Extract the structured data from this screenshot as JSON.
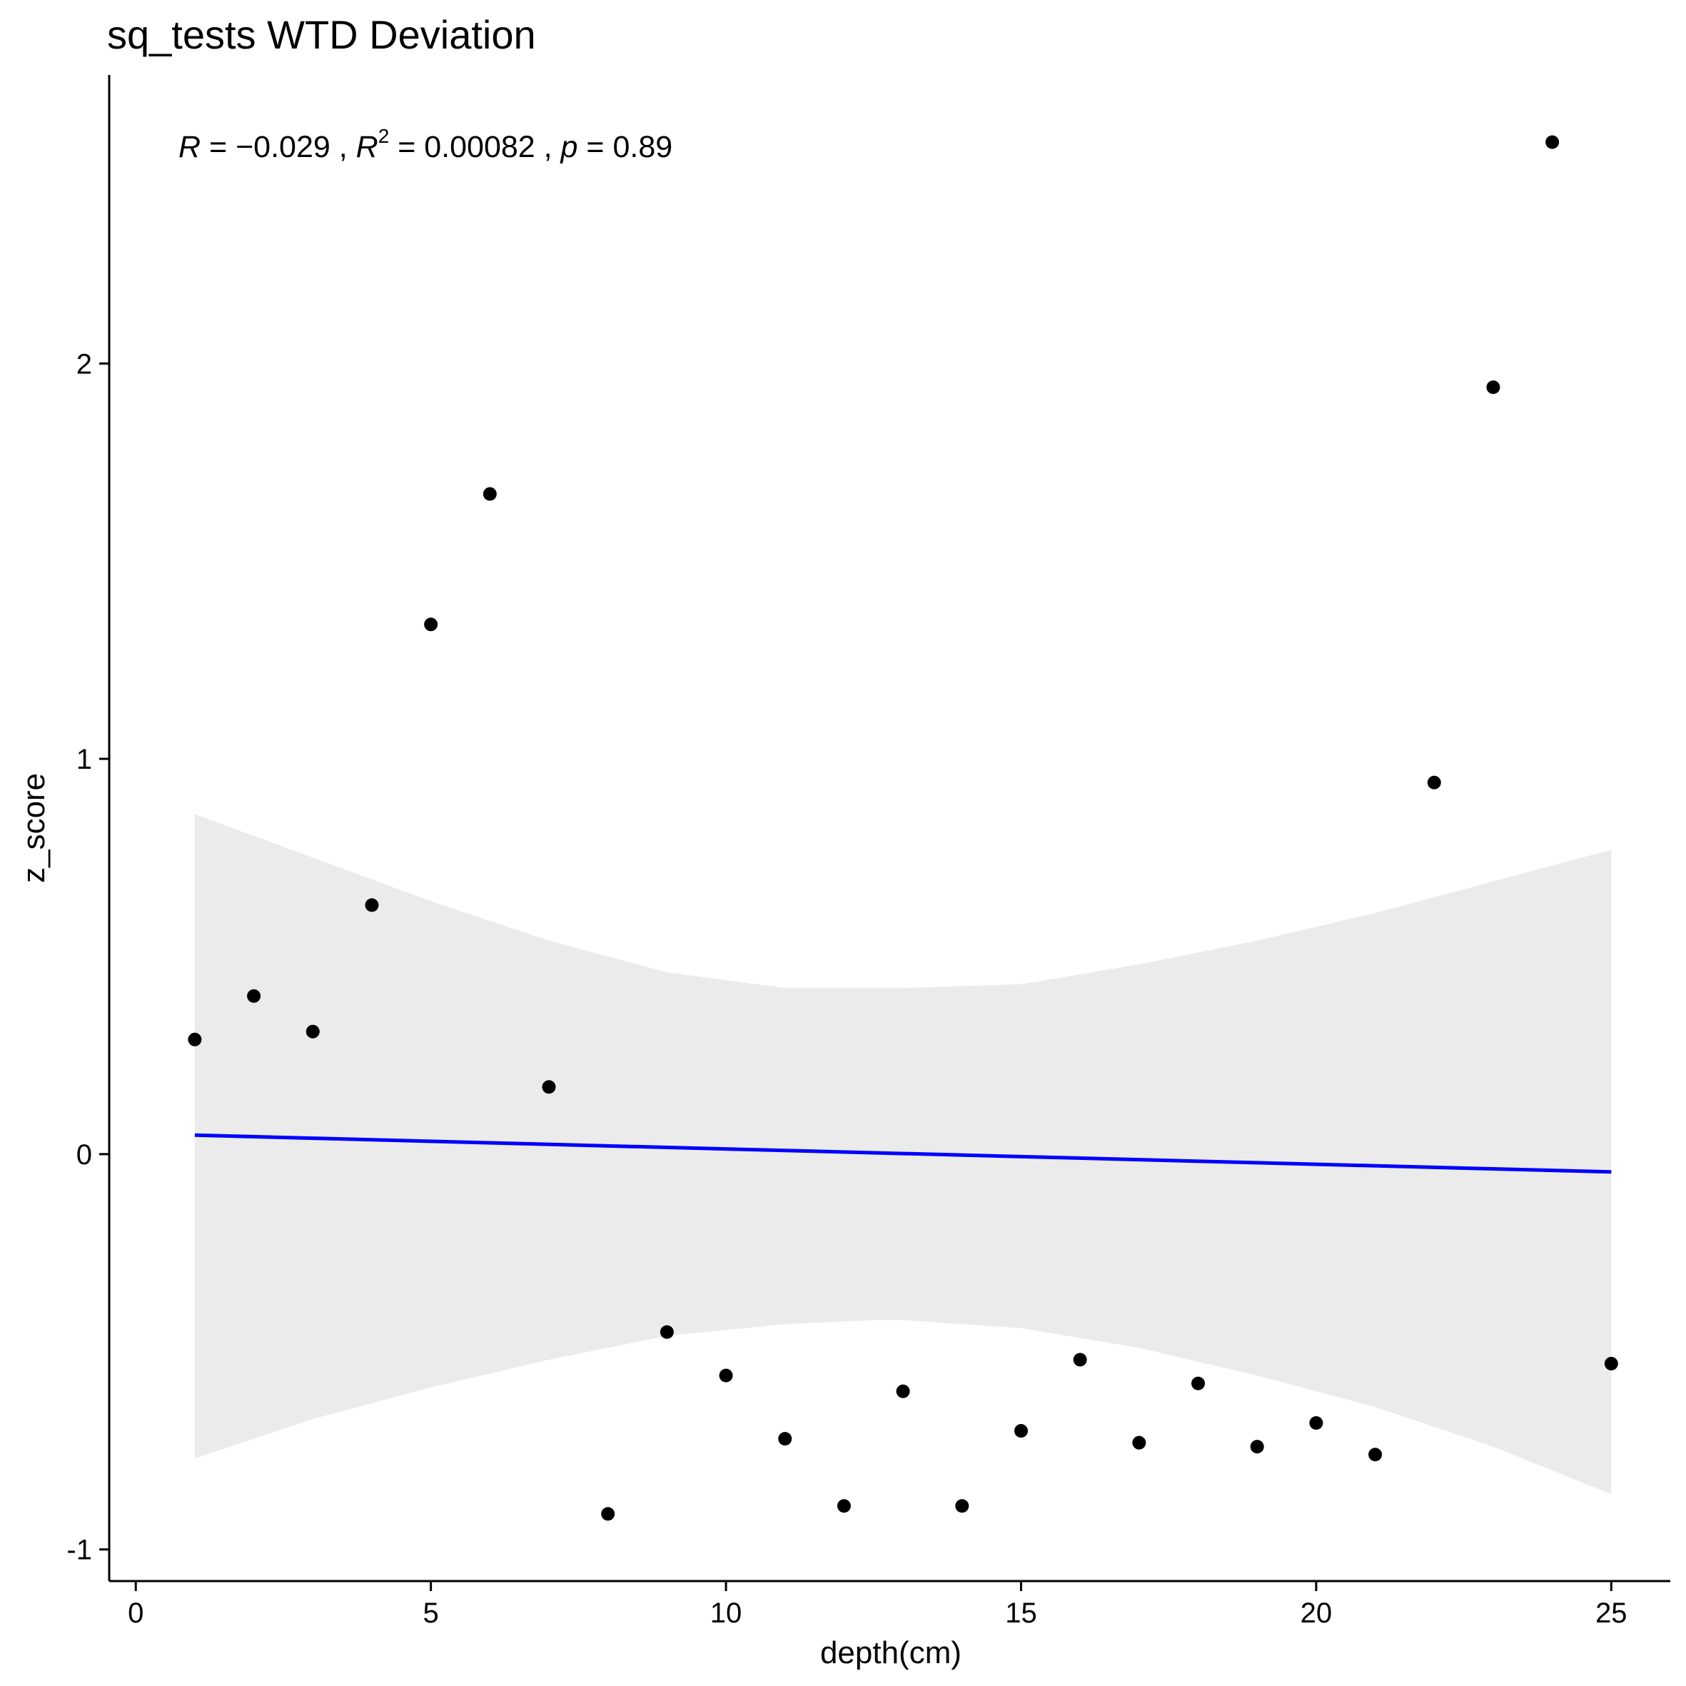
{
  "chart_data": {
    "type": "scatter",
    "title": "sq_tests WTD Deviation",
    "xlabel": "depth(cm)",
    "ylabel": "z_score",
    "xlim": [
      -0.45,
      26.0
    ],
    "ylim": [
      -1.08,
      2.73
    ],
    "x_ticks": [
      0,
      5,
      10,
      15,
      20,
      25
    ],
    "x_tick_labels": [
      "0",
      "5",
      "10",
      "15",
      "20",
      "25"
    ],
    "y_ticks": [
      -1,
      0,
      1,
      2
    ],
    "y_tick_labels": [
      "-1",
      "0",
      "1",
      "2"
    ],
    "grid": false,
    "annotation": {
      "r_sym": "R",
      "r_val": " = −0.029 , ",
      "r2_sym": "R",
      "r2_sup": "2",
      "r2_val": " = 0.00082 , ",
      "p_sym": "p",
      "p_val": " = 0.89"
    },
    "points": {
      "x": [
        1,
        2,
        3,
        4,
        5,
        6,
        7,
        8,
        9,
        10,
        11,
        12,
        13,
        14,
        15,
        16,
        17,
        18,
        19,
        20,
        21,
        22,
        23,
        24,
        25
      ],
      "y": [
        0.29,
        0.4,
        0.31,
        0.63,
        1.34,
        1.67,
        0.17,
        -0.91,
        -0.45,
        -0.56,
        -0.72,
        -0.89,
        -0.6,
        -0.89,
        -0.7,
        -0.52,
        -0.73,
        -0.58,
        -0.74,
        -0.68,
        -0.76,
        0.94,
        1.94,
        2.56,
        -0.53
      ],
      "color": "#000000"
    },
    "regression": {
      "x": [
        1,
        25
      ],
      "y": [
        0.048,
        -0.045
      ],
      "color": "#0000FF"
    },
    "confidence_band": {
      "x": [
        1,
        3,
        5,
        7,
        9,
        11,
        12.5,
        13,
        15,
        17,
        19,
        21,
        23,
        25
      ],
      "upper": [
        0.86,
        0.75,
        0.64,
        0.54,
        0.46,
        0.42,
        0.42,
        0.42,
        0.43,
        0.48,
        0.54,
        0.61,
        0.69,
        0.77
      ],
      "lower": [
        -0.77,
        -0.67,
        -0.59,
        -0.52,
        -0.46,
        -0.43,
        -0.42,
        -0.42,
        -0.44,
        -0.49,
        -0.56,
        -0.64,
        -0.74,
        -0.86
      ],
      "color": "#EBEBEB"
    }
  }
}
